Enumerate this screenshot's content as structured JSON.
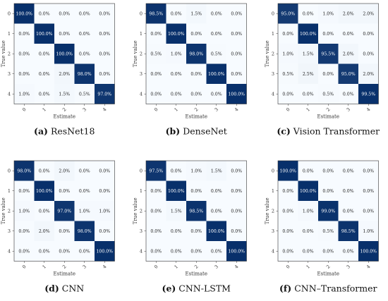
{
  "chart_data": [
    {
      "type": "heatmap",
      "caption_tag": "(a)",
      "caption": "ResNet18",
      "xlabel": "Estimate",
      "ylabel": "True value",
      "x_ticks": [
        "0",
        "1",
        "2",
        "3",
        "4"
      ],
      "y_ticks": [
        "0",
        "1",
        "2",
        "3",
        "4"
      ],
      "values": [
        [
          100.0,
          0.0,
          0.0,
          0.0,
          0.0
        ],
        [
          0.0,
          100.0,
          0.0,
          0.0,
          0.0
        ],
        [
          0.0,
          0.0,
          100.0,
          0.0,
          0.0
        ],
        [
          0.0,
          0.0,
          2.0,
          98.0,
          0.0
        ],
        [
          1.0,
          0.0,
          1.5,
          0.5,
          97.0
        ]
      ]
    },
    {
      "type": "heatmap",
      "caption_tag": "(b)",
      "caption": "DenseNet",
      "xlabel": "Estimate",
      "ylabel": "True value",
      "x_ticks": [
        "0",
        "1",
        "2",
        "3",
        "4"
      ],
      "y_ticks": [
        "0",
        "1",
        "2",
        "3",
        "4"
      ],
      "values": [
        [
          98.5,
          0.0,
          1.5,
          0.0,
          0.0
        ],
        [
          0.0,
          100.0,
          0.0,
          0.0,
          0.0
        ],
        [
          0.5,
          1.0,
          98.0,
          0.5,
          0.0
        ],
        [
          0.0,
          0.0,
          0.0,
          100.0,
          0.0
        ],
        [
          0.0,
          0.0,
          0.0,
          0.0,
          100.0
        ]
      ]
    },
    {
      "type": "heatmap",
      "caption_tag": "(c)",
      "caption": "Vision Transformer",
      "xlabel": "Estimate",
      "ylabel": "True value",
      "x_ticks": [
        "0",
        "1",
        "2",
        "3",
        "4"
      ],
      "y_ticks": [
        "0",
        "1",
        "2",
        "3",
        "4"
      ],
      "values": [
        [
          95.0,
          0.0,
          1.0,
          2.0,
          2.0
        ],
        [
          0.0,
          100.0,
          0.0,
          0.0,
          0.0
        ],
        [
          1.0,
          1.5,
          95.5,
          2.0,
          0.0
        ],
        [
          0.5,
          2.5,
          0.0,
          95.0,
          2.0
        ],
        [
          0.0,
          0.0,
          0.5,
          0.0,
          99.5
        ]
      ]
    },
    {
      "type": "heatmap",
      "caption_tag": "(d)",
      "caption": "CNN",
      "xlabel": "Estimate",
      "ylabel": "True value",
      "x_ticks": [
        "0",
        "1",
        "2",
        "3",
        "4"
      ],
      "y_ticks": [
        "0",
        "1",
        "2",
        "3",
        "4"
      ],
      "values": [
        [
          98.0,
          0.0,
          2.0,
          0.0,
          0.0
        ],
        [
          0.0,
          100.0,
          0.0,
          0.0,
          0.0
        ],
        [
          1.0,
          0.0,
          97.0,
          1.0,
          1.0
        ],
        [
          0.0,
          2.0,
          0.0,
          98.0,
          0.0
        ],
        [
          0.0,
          0.0,
          0.0,
          0.0,
          100.0
        ]
      ]
    },
    {
      "type": "heatmap",
      "caption_tag": "(e)",
      "caption": "CNN-LSTM",
      "xlabel": "Estimate",
      "ylabel": "True value",
      "x_ticks": [
        "0",
        "1",
        "2",
        "3",
        "4"
      ],
      "y_ticks": [
        "0",
        "1",
        "2",
        "3",
        "4"
      ],
      "values": [
        [
          97.5,
          0.0,
          1.0,
          1.5,
          0.0
        ],
        [
          0.0,
          100.0,
          0.0,
          0.0,
          0.0
        ],
        [
          0.0,
          1.5,
          98.5,
          0.0,
          0.0
        ],
        [
          0.0,
          0.0,
          0.0,
          100.0,
          0.0
        ],
        [
          0.0,
          0.0,
          0.0,
          0.0,
          100.0
        ]
      ]
    },
    {
      "type": "heatmap",
      "caption_tag": "(f)",
      "caption": "CNN–Transformer",
      "xlabel": "Estimate",
      "ylabel": "True value",
      "x_ticks": [
        "0",
        "1",
        "2",
        "3",
        "4"
      ],
      "y_ticks": [
        "0",
        "1",
        "2",
        "3",
        "4"
      ],
      "values": [
        [
          100.0,
          0.0,
          0.0,
          0.0,
          0.0
        ],
        [
          0.0,
          100.0,
          0.0,
          0.0,
          0.0
        ],
        [
          0.0,
          1.0,
          99.0,
          0.0,
          0.0
        ],
        [
          0.0,
          0.0,
          0.5,
          98.5,
          1.0
        ],
        [
          0.0,
          0.0,
          0.0,
          0.0,
          100.0
        ]
      ]
    }
  ],
  "colors": {
    "low": "#f7fbff",
    "high": "#08306b",
    "text_dark": "#222222",
    "text_light": "#ffffff"
  }
}
